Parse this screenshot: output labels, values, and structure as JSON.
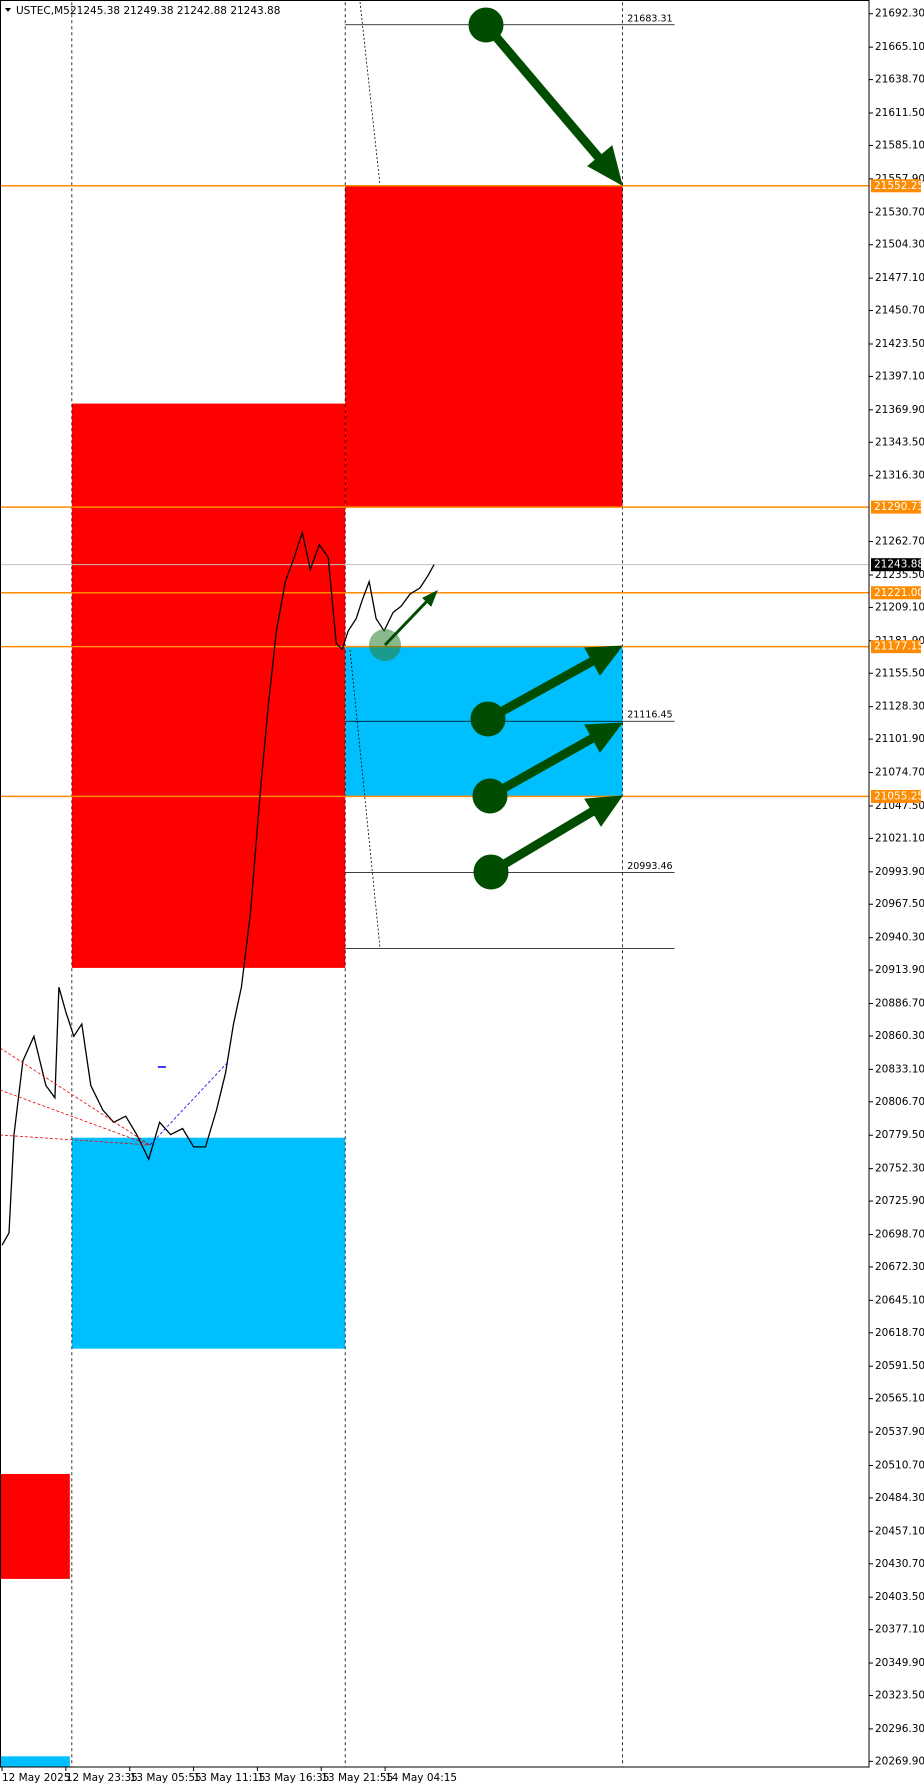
{
  "chart_data": {
    "type": "line",
    "title": "USTEC,M5",
    "ohlc": "21245.38 21249.38 21242.88 21243.88",
    "color": "#000000",
    "x": [
      2,
      9,
      14,
      23,
      34,
      46,
      55,
      59,
      66,
      74,
      82,
      91,
      103,
      114,
      126,
      137,
      149,
      160,
      171,
      183,
      194,
      206,
      217,
      226,
      234,
      242,
      251,
      261,
      269,
      277,
      286,
      295,
      303,
      311,
      320,
      329,
      337,
      343,
      349,
      357,
      363,
      370,
      377,
      385,
      394,
      402,
      411,
      421,
      429,
      435
    ],
    "values": [
      20690,
      20700,
      20780,
      20840,
      20860,
      20820,
      20810,
      20900,
      20880,
      20860,
      20870,
      20820,
      20800,
      20790,
      20795,
      20780,
      20760,
      20790,
      20780,
      20785,
      20770,
      20770,
      20800,
      20830,
      20870,
      20900,
      20960,
      21060,
      21130,
      21190,
      21230,
      21250,
      21270,
      21240,
      21260,
      21250,
      21180,
      21175,
      21190,
      21200,
      21215,
      21230,
      21200,
      21190,
      21205,
      21210,
      21220,
      21225,
      21235,
      21243.88
    ],
    "xlim": [
      0,
      871
    ],
    "ylim": [
      20265.3,
      21701.6
    ],
    "xticks": [
      {
        "value": 2,
        "label": "12 May 2025"
      },
      {
        "value": 66,
        "label": "12 May 23:35"
      },
      {
        "value": 130,
        "label": "13 May 05:55"
      },
      {
        "value": 194,
        "label": "13 May 11:15"
      },
      {
        "value": 258,
        "label": "13 May 16:35"
      },
      {
        "value": 322,
        "label": "13 May 21:55"
      },
      {
        "value": 386,
        "label": "14 May 04:15"
      }
    ],
    "yticks": [
      {
        "value": 21692.3,
        "label": "21692.30"
      },
      {
        "value": 21665.1,
        "label": "21665.10"
      },
      {
        "value": 21638.7,
        "label": "21638.70"
      },
      {
        "value": 21611.5,
        "label": "21611.50"
      },
      {
        "value": 21585.1,
        "label": "21585.10"
      },
      {
        "value": 21557.9,
        "label": "21557.90"
      },
      {
        "value": 21530.7,
        "label": "21530.70"
      },
      {
        "value": 21504.3,
        "label": "21504.30"
      },
      {
        "value": 21477.1,
        "label": "21477.10"
      },
      {
        "value": 21450.7,
        "label": "21450.70"
      },
      {
        "value": 21423.5,
        "label": "21423.50"
      },
      {
        "value": 21397.1,
        "label": "21397.10"
      },
      {
        "value": 21369.9,
        "label": "21369.90"
      },
      {
        "value": 21343.5,
        "label": "21343.50"
      },
      {
        "value": 21316.3,
        "label": "21316.30"
      },
      {
        "value": 21262.7,
        "label": "21262.70"
      },
      {
        "value": 21235.5,
        "label": "21235.50"
      },
      {
        "value": 21209.1,
        "label": "21209.10"
      },
      {
        "value": 21181.9,
        "label": "21181.90"
      },
      {
        "value": 21155.5,
        "label": "21155.50"
      },
      {
        "value": 21128.3,
        "label": "21128.30"
      },
      {
        "value": 21101.9,
        "label": "21101.90"
      },
      {
        "value": 21074.7,
        "label": "21074.70"
      },
      {
        "value": 21047.5,
        "label": "21047.50"
      },
      {
        "value": 21021.1,
        "label": "21021.10"
      },
      {
        "value": 20993.9,
        "label": "20993.90"
      },
      {
        "value": 20967.5,
        "label": "20967.50"
      },
      {
        "value": 20940.3,
        "label": "20940.30"
      },
      {
        "value": 20913.9,
        "label": "20913.90"
      },
      {
        "value": 20886.7,
        "label": "20886.70"
      },
      {
        "value": 20860.3,
        "label": "20860.30"
      },
      {
        "value": 20833.1,
        "label": "20833.10"
      },
      {
        "value": 20806.7,
        "label": "20806.70"
      },
      {
        "value": 20779.5,
        "label": "20779.50"
      },
      {
        "value": 20752.3,
        "label": "20752.30"
      },
      {
        "value": 20725.9,
        "label": "20725.90"
      },
      {
        "value": 20698.7,
        "label": "20698.70"
      },
      {
        "value": 20672.3,
        "label": "20672.30"
      },
      {
        "value": 20645.1,
        "label": "20645.10"
      },
      {
        "value": 20618.7,
        "label": "20618.70"
      },
      {
        "value": 20591.5,
        "label": "20591.50"
      },
      {
        "value": 20565.1,
        "label": "20565.10"
      },
      {
        "value": 20537.9,
        "label": "20537.90"
      },
      {
        "value": 20510.7,
        "label": "20510.70"
      },
      {
        "value": 20484.3,
        "label": "20484.30"
      },
      {
        "value": 20457.1,
        "label": "20457.10"
      },
      {
        "value": 20430.7,
        "label": "20430.70"
      },
      {
        "value": 20403.5,
        "label": "20403.50"
      },
      {
        "value": 20377.1,
        "label": "20377.10"
      },
      {
        "value": 20349.9,
        "label": "20349.90"
      },
      {
        "value": 20323.5,
        "label": "20323.50"
      },
      {
        "value": 20296.3,
        "label": "20296.30"
      },
      {
        "value": 20269.9,
        "label": "20269.90"
      }
    ],
    "zones": [
      {
        "start": 72,
        "end": 346,
        "top": 21375,
        "bottom": 20915.7,
        "color": "#ff0000"
      },
      {
        "start": 72,
        "end": 346,
        "top": 20777.5,
        "bottom": 20605.8,
        "color": "#00bfff"
      },
      {
        "start": 346,
        "end": 624,
        "top": 21552.25,
        "bottom": 21290.73,
        "color": "#ff0000"
      },
      {
        "start": 346,
        "end": 624,
        "top": 21177.15,
        "bottom": 21055.25,
        "color": "#00bfff"
      },
      {
        "start": 0,
        "end": 70,
        "top": 20503.8,
        "bottom": 20418.4,
        "color": "#ff0000"
      },
      {
        "start": 0,
        "end": 70,
        "top": 20274,
        "bottom": 20265.3,
        "color": "#00bfff"
      }
    ],
    "levels": [
      21552.25,
      21290.73,
      {
        "value": 21221,
        "label": "21221.00"
      },
      21177.15,
      21055.25
    ],
    "level_color": "#ff8c00",
    "current": 21243.88,
    "labeled_lines": [
      21683.31,
      21116.45,
      20993.46
    ],
    "plain_lines": [
      20931.5
    ],
    "vlines": [
      72,
      346,
      624
    ]
  }
}
